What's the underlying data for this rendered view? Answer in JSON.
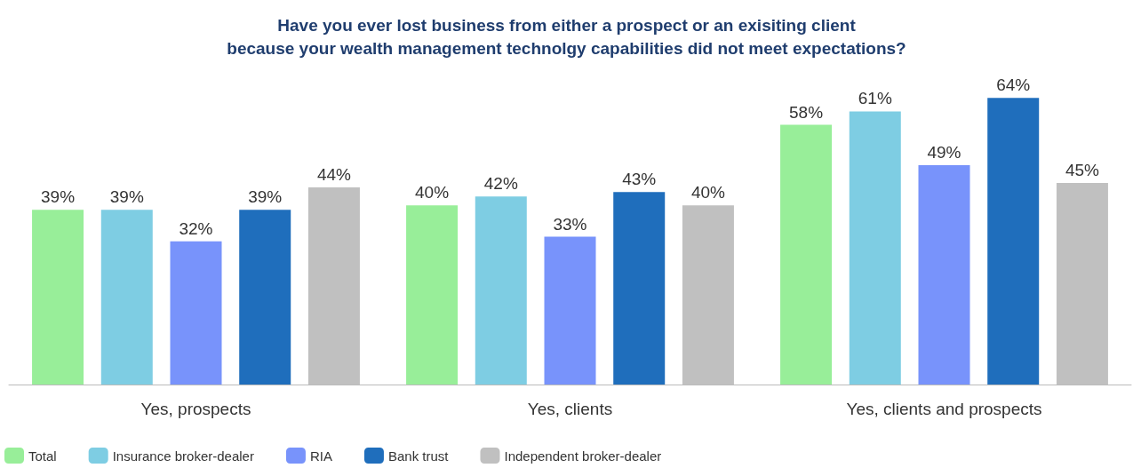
{
  "chart_data": {
    "type": "bar",
    "title": "Have you ever lost business from either a prospect or an exisiting client\nbecause your wealth management technolgy capabilities did not meet expectations?",
    "categories": [
      "Yes, prospects",
      "Yes, clients",
      "Yes, clients and prospects"
    ],
    "series": [
      {
        "name": "Total",
        "color": "#98ee99",
        "values": [
          39,
          40,
          58
        ],
        "value_labels": [
          "39%",
          "40%",
          "58%"
        ]
      },
      {
        "name": "Insurance broker-dealer",
        "color": "#7ecde3",
        "values": [
          39,
          42,
          61
        ],
        "value_labels": [
          "39%",
          "42%",
          "61%"
        ]
      },
      {
        "name": "RIA",
        "color": "#7893fb",
        "values": [
          32,
          33,
          49
        ],
        "value_labels": [
          "32%",
          "33%",
          "49%"
        ]
      },
      {
        "name": "Bank trust",
        "color": "#1f6ebc",
        "values": [
          39,
          43,
          64
        ],
        "value_labels": [
          "39%",
          "43%",
          "64%"
        ]
      },
      {
        "name": "Independent broker-dealer",
        "color": "#c0c0c0",
        "values": [
          44,
          40,
          45
        ],
        "value_labels": [
          "44%",
          "40%",
          "45%"
        ]
      }
    ],
    "legend": "bottom left"
  }
}
